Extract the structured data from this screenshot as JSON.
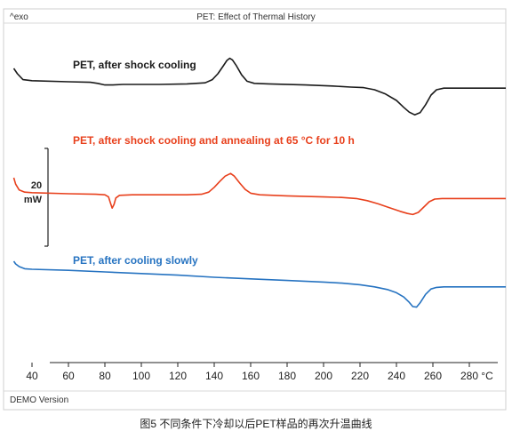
{
  "header": {
    "left_label": "^exo",
    "title": "PET: Effect of Thermal History"
  },
  "footer": {
    "status": "DEMO Version"
  },
  "caption": "图5 不同条件下冷却以后PET样品的再次升温曲线",
  "scale_bar": {
    "value": "20",
    "unit": "mW"
  },
  "chart_data": {
    "type": "line",
    "title": "PET: Effect of Thermal History",
    "xlabel": "°C",
    "ylabel": "",
    "x_ticks": [
      40,
      60,
      80,
      100,
      120,
      140,
      160,
      180,
      200,
      220,
      240,
      260,
      280
    ],
    "xlim": [
      30,
      300
    ],
    "grid": false,
    "series": [
      {
        "name": "PET, after shock cooling",
        "color": "#1a1a1a",
        "points": [
          [
            30,
            0
          ],
          [
            32,
            10
          ],
          [
            35,
            21
          ],
          [
            40,
            23
          ],
          [
            60,
            25
          ],
          [
            72,
            26
          ],
          [
            76,
            28
          ],
          [
            80,
            31
          ],
          [
            84,
            31
          ],
          [
            90,
            30
          ],
          [
            110,
            30
          ],
          [
            125,
            29
          ],
          [
            135,
            27
          ],
          [
            139,
            21
          ],
          [
            142,
            10
          ],
          [
            145,
            -5
          ],
          [
            147,
            -15
          ],
          [
            148.5,
            -19
          ],
          [
            150,
            -16
          ],
          [
            152,
            -6
          ],
          [
            155,
            12
          ],
          [
            158,
            24
          ],
          [
            162,
            28
          ],
          [
            170,
            29
          ],
          [
            190,
            31
          ],
          [
            205,
            33
          ],
          [
            215,
            35
          ],
          [
            222,
            36
          ],
          [
            228,
            40
          ],
          [
            234,
            48
          ],
          [
            240,
            60
          ],
          [
            244,
            73
          ],
          [
            247,
            82
          ],
          [
            250,
            87
          ],
          [
            253,
            83
          ],
          [
            256,
            68
          ],
          [
            259,
            50
          ],
          [
            262,
            40
          ],
          [
            266,
            37
          ],
          [
            275,
            37
          ],
          [
            300,
            37
          ]
        ]
      },
      {
        "name": "PET, after shock cooling and annealing at 65 °C for 10 h",
        "color": "#e8401c",
        "points": [
          [
            30,
            0
          ],
          [
            31,
            12
          ],
          [
            33,
            23
          ],
          [
            36,
            27
          ],
          [
            40,
            28
          ],
          [
            60,
            30
          ],
          [
            75,
            31
          ],
          [
            80,
            32
          ],
          [
            82,
            36
          ],
          [
            83,
            47
          ],
          [
            84,
            57
          ],
          [
            85,
            50
          ],
          [
            86,
            38
          ],
          [
            88,
            33
          ],
          [
            95,
            32
          ],
          [
            110,
            32
          ],
          [
            125,
            32
          ],
          [
            133,
            31
          ],
          [
            137,
            27
          ],
          [
            140,
            18
          ],
          [
            143,
            7
          ],
          [
            146,
            -3
          ],
          [
            149,
            -8
          ],
          [
            151,
            -3
          ],
          [
            154,
            10
          ],
          [
            157,
            22
          ],
          [
            160,
            29
          ],
          [
            165,
            32
          ],
          [
            180,
            34
          ],
          [
            200,
            36
          ],
          [
            210,
            37
          ],
          [
            218,
            39
          ],
          [
            224,
            43
          ],
          [
            230,
            49
          ],
          [
            236,
            56
          ],
          [
            242,
            63
          ],
          [
            246,
            67
          ],
          [
            249,
            69
          ],
          [
            252,
            65
          ],
          [
            255,
            55
          ],
          [
            258,
            45
          ],
          [
            261,
            40
          ],
          [
            265,
            39
          ],
          [
            280,
            39
          ],
          [
            300,
            39
          ]
        ]
      },
      {
        "name": "PET, after cooling slowly",
        "color": "#2673c1",
        "points": [
          [
            30,
            0
          ],
          [
            31,
            5
          ],
          [
            33,
            10
          ],
          [
            36,
            14
          ],
          [
            40,
            15
          ],
          [
            60,
            17
          ],
          [
            80,
            20
          ],
          [
            100,
            23
          ],
          [
            120,
            26
          ],
          [
            140,
            30
          ],
          [
            160,
            33
          ],
          [
            180,
            36
          ],
          [
            200,
            39
          ],
          [
            210,
            41
          ],
          [
            220,
            44
          ],
          [
            228,
            48
          ],
          [
            235,
            53
          ],
          [
            240,
            59
          ],
          [
            244,
            67
          ],
          [
            247,
            77
          ],
          [
            249,
            85
          ],
          [
            251,
            86
          ],
          [
            253,
            78
          ],
          [
            256,
            62
          ],
          [
            259,
            52
          ],
          [
            262,
            49
          ],
          [
            266,
            48
          ],
          [
            280,
            48
          ],
          [
            300,
            48
          ]
        ]
      }
    ]
  }
}
